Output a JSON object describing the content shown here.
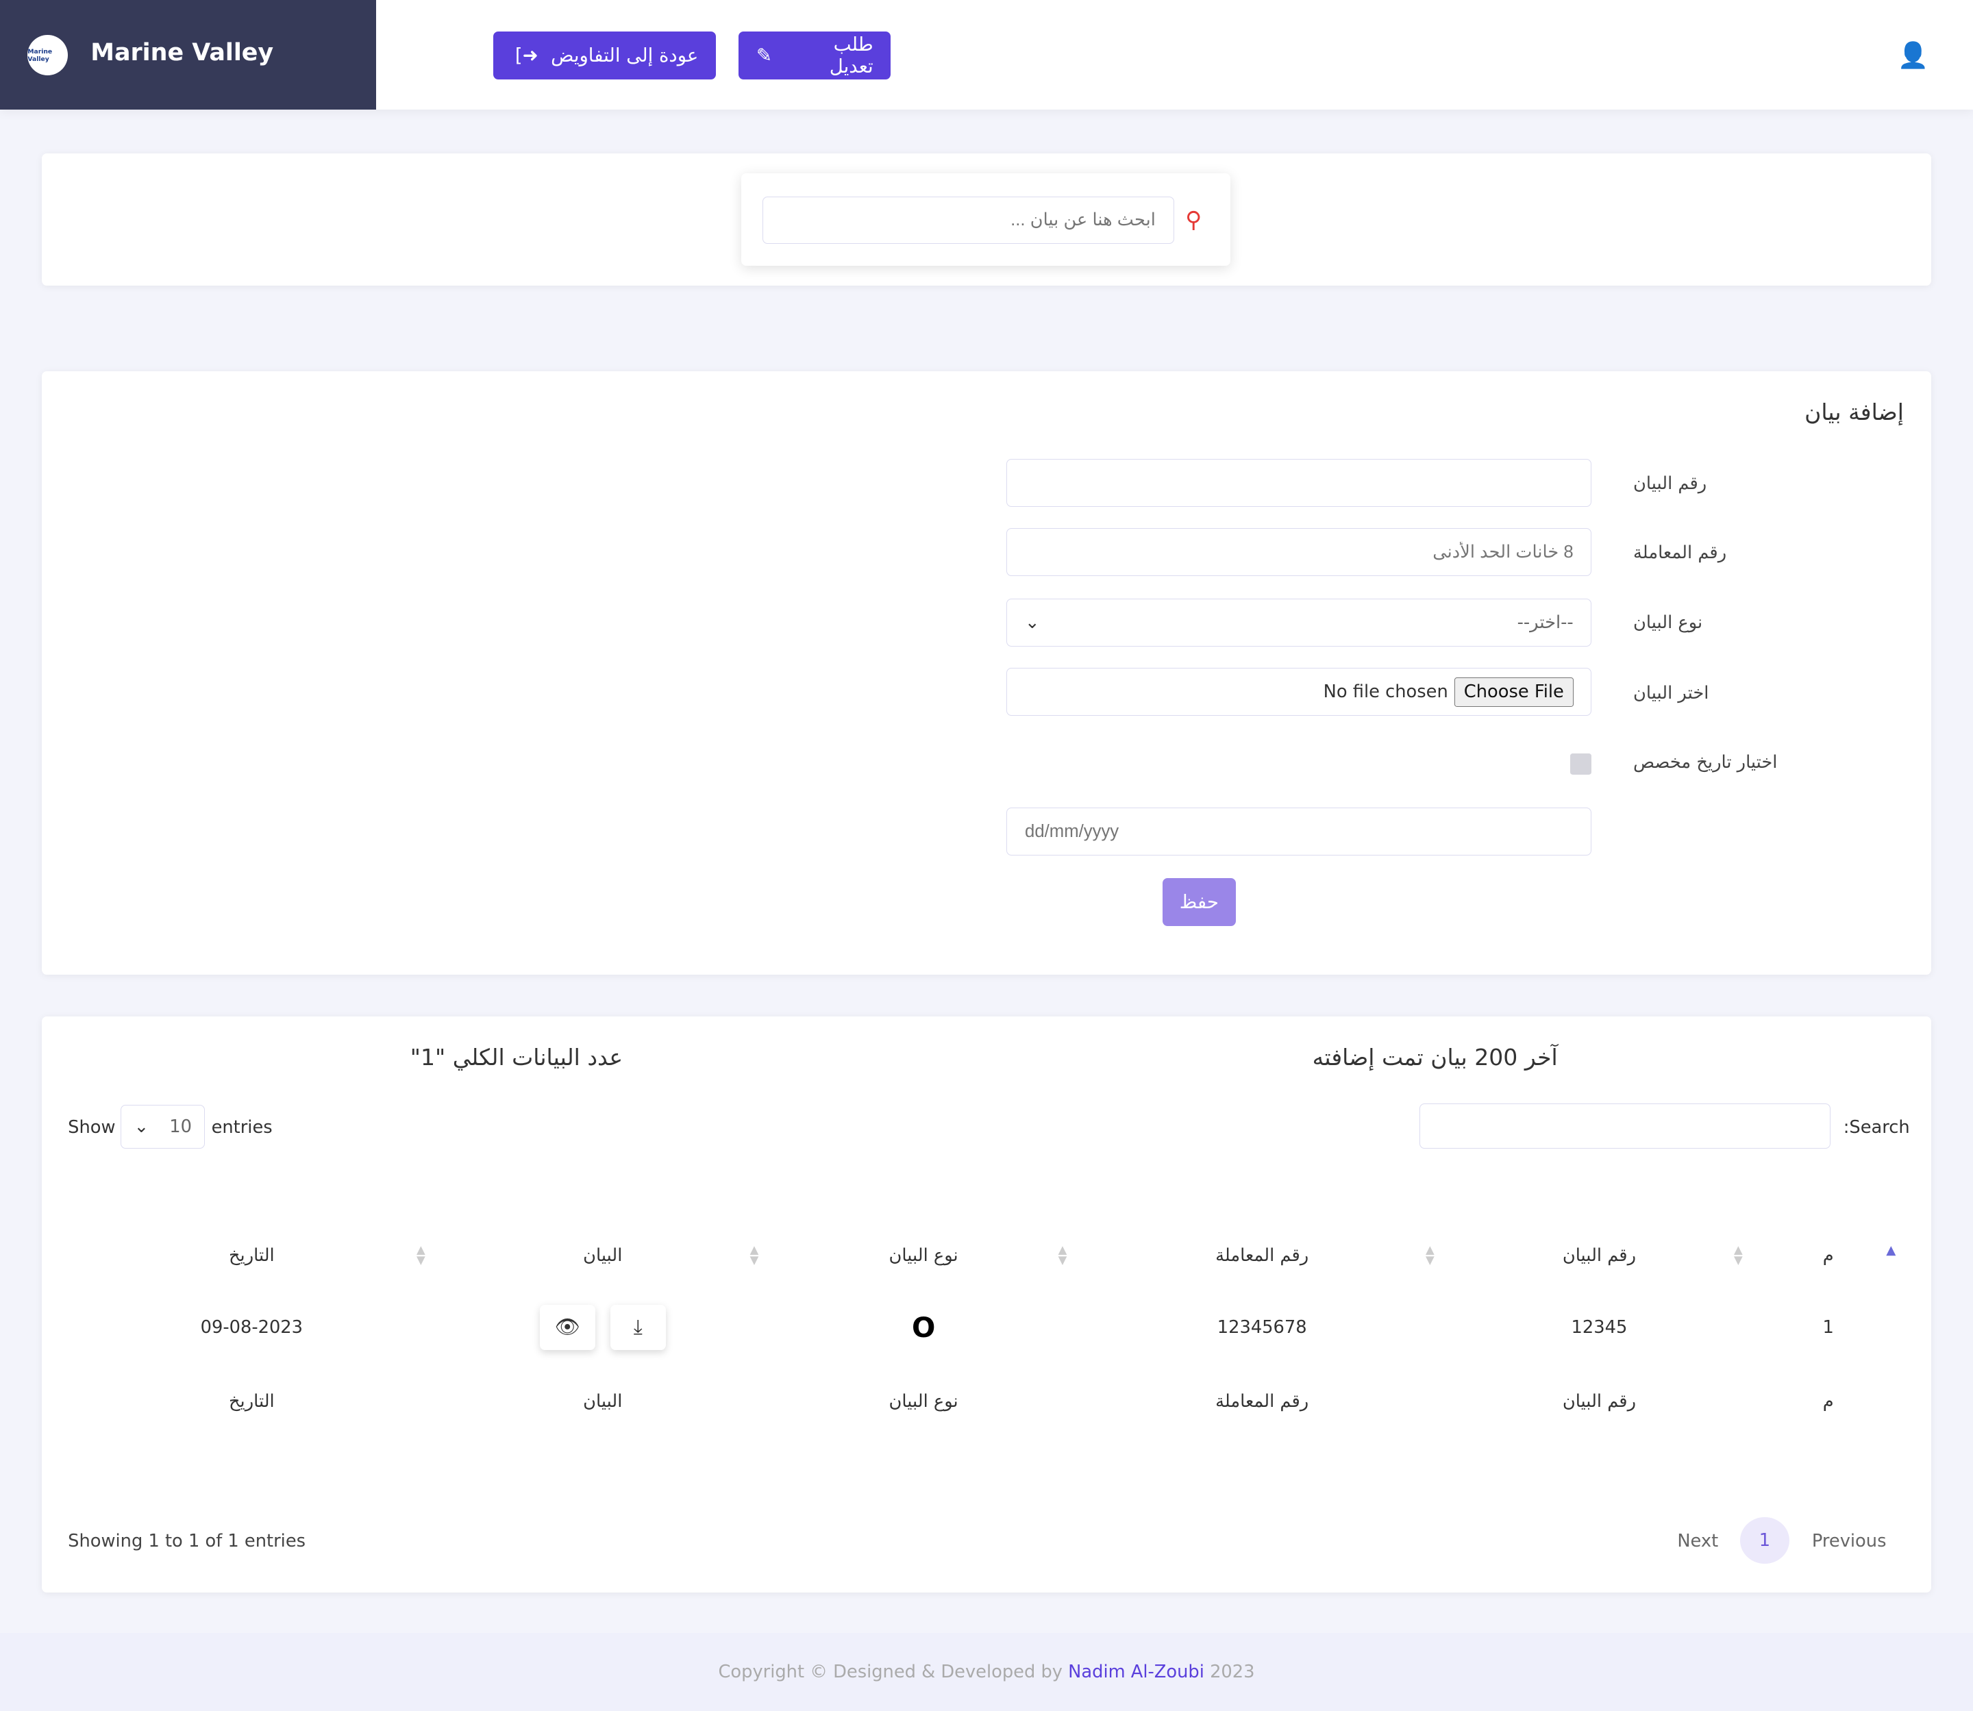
{
  "header": {
    "brand": "Marine Valley",
    "logo_text": "Marine Valley",
    "back_button": "عودة إلى التفاويض",
    "edit_request_button": "طلب تعديل",
    "accent": "#5a3fdc"
  },
  "search": {
    "placeholder": "ابحث هنا عن بيان ..."
  },
  "form": {
    "title": "إضافة بيان",
    "fields": [
      {
        "label": "رقم البيان",
        "value": "",
        "placeholder": ""
      },
      {
        "label": "رقم المعاملة",
        "placeholder": "8 خانات الحد الأدنى"
      },
      {
        "label": "نوع البيان",
        "selected": "--اختر--"
      },
      {
        "label": "اختر البيان",
        "file_button": "Choose File",
        "file_status": "No file chosen"
      },
      {
        "label": "اختيار تاريخ مخصص",
        "checked": false
      }
    ],
    "date_placeholder": "dd/mm/yyyy",
    "save_button": "حفظ"
  },
  "table_section": {
    "title_right": "آخر 200 بيان تمت إضافته",
    "title_left": "عدد البيانات الكلي \"1\"",
    "show_label": "Show",
    "entries_label": "entries",
    "page_size": "10",
    "search_label": "Search:",
    "columns": [
      "م",
      "رقم البيان",
      "رقم المعاملة",
      "نوع البيان",
      "البيان",
      "التاريخ"
    ],
    "rows": [
      {
        "index": "1",
        "statement_no": "12345",
        "transaction_no": "12345678",
        "type": "O",
        "date": "09-08-2023"
      }
    ],
    "info": "Showing 1 to 1 of 1 entries",
    "pagination": {
      "previous": "Previous",
      "current": "1",
      "next": "Next"
    }
  },
  "footer": {
    "prefix": "Copyright © Designed & Developed by",
    "author": "Nadim Al-Zoubi",
    "year": "2023"
  }
}
